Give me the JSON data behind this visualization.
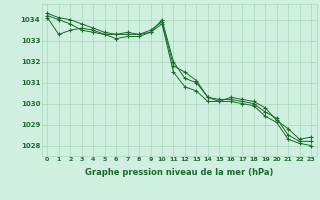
{
  "bg_color": "#cff0e0",
  "grid_color": "#aad4bb",
  "line_color": "#1a6b2a",
  "marker_color": "#1a6b2a",
  "xlabel": "Graphe pression niveau de la mer (hPa)",
  "xlabel_color": "#1a6b2a",
  "ylim": [
    1027.5,
    1034.75
  ],
  "xlim": [
    -0.5,
    23.5
  ],
  "yticks": [
    1028,
    1029,
    1030,
    1031,
    1032,
    1033,
    1034
  ],
  "xticks": [
    0,
    1,
    2,
    3,
    4,
    5,
    6,
    7,
    8,
    9,
    10,
    11,
    12,
    13,
    14,
    15,
    16,
    17,
    18,
    19,
    20,
    21,
    22,
    23
  ],
  "series": [
    [
      1034.3,
      1034.1,
      1034.0,
      1033.8,
      1033.6,
      1033.4,
      1033.3,
      1033.3,
      1033.3,
      1033.4,
      1034.0,
      1032.0,
      1031.2,
      1031.0,
      1030.3,
      1030.2,
      1030.2,
      1030.1,
      1030.0,
      1029.6,
      1029.3,
      1028.5,
      1028.2,
      1028.2
    ],
    [
      1034.2,
      1034.0,
      1033.8,
      1033.5,
      1033.4,
      1033.3,
      1033.1,
      1033.2,
      1033.2,
      1033.4,
      1033.8,
      1031.5,
      1030.8,
      1030.6,
      1030.1,
      1030.1,
      1030.1,
      1030.0,
      1029.9,
      1029.4,
      1029.1,
      1028.3,
      1028.1,
      1028.0
    ],
    [
      1034.1,
      1033.3,
      1033.5,
      1033.6,
      1033.5,
      1033.3,
      1033.3,
      1033.4,
      1033.3,
      1033.5,
      1033.9,
      1031.8,
      1031.5,
      1031.1,
      1030.3,
      1030.1,
      1030.3,
      1030.2,
      1030.1,
      1029.8,
      1029.2,
      1028.8,
      1028.3,
      1028.4
    ]
  ]
}
